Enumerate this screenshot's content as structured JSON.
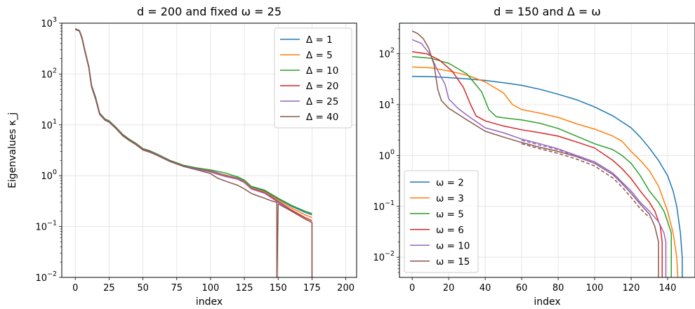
{
  "chart_data": [
    {
      "type": "line",
      "title": "d = 200 and fixed ω = 25",
      "xlabel": "index",
      "ylabel": "Eigenvalues κ_j",
      "yscale": "log",
      "xlim": [
        -10,
        208
      ],
      "ylim": [
        0.01,
        1000
      ],
      "grid": true,
      "legend_position": "top-right",
      "xticks": [
        0,
        25,
        50,
        75,
        100,
        125,
        150,
        175,
        200
      ],
      "xtick_labels": [
        "0",
        "25",
        "50",
        "75",
        "100",
        "125",
        "150",
        "175",
        "200"
      ],
      "yticks": [
        0.01,
        0.1,
        1,
        10,
        100,
        1000
      ],
      "ytick_labels": [
        {
          "base": "10",
          "exp": "−2"
        },
        {
          "base": "10",
          "exp": "−1"
        },
        {
          "base": "10",
          "exp": "0"
        },
        {
          "base": "10",
          "exp": "1"
        },
        {
          "base": "10",
          "exp": "2"
        },
        {
          "base": "10",
          "exp": "3"
        }
      ],
      "series": [
        {
          "name": "Δ = 1",
          "color": "#1f77b4",
          "dashed": false,
          "x": [
            0,
            3,
            5,
            7,
            10,
            12,
            15,
            18,
            22,
            25,
            30,
            35,
            40,
            45,
            50,
            55,
            60,
            70,
            80,
            90,
            100,
            110,
            120,
            125,
            130,
            140,
            150,
            160,
            170,
            175
          ],
          "y": [
            780,
            720,
            520,
            300,
            140,
            60,
            35,
            17,
            13,
            12,
            9,
            6.5,
            5.2,
            4.3,
            3.4,
            3.1,
            2.7,
            2.0,
            1.6,
            1.4,
            1.25,
            1.05,
            0.9,
            0.78,
            0.6,
            0.5,
            0.35,
            0.25,
            0.19,
            0.17
          ]
        },
        {
          "name": "Δ = 5",
          "color": "#ff7f0e",
          "dashed": false,
          "x": [
            0,
            3,
            5,
            7,
            10,
            12,
            15,
            18,
            22,
            25,
            30,
            35,
            40,
            45,
            50,
            55,
            60,
            70,
            80,
            90,
            100,
            110,
            120,
            125,
            130,
            140,
            150,
            160,
            170,
            175
          ],
          "y": [
            770,
            715,
            510,
            295,
            138,
            59,
            34,
            16.8,
            12.8,
            11.8,
            8.8,
            6.4,
            5.1,
            4.2,
            3.35,
            3.05,
            2.65,
            1.98,
            1.58,
            1.38,
            1.22,
            1.03,
            0.88,
            0.76,
            0.58,
            0.48,
            0.33,
            0.23,
            0.17,
            0.15
          ]
        },
        {
          "name": "Δ = 10",
          "color": "#2ca02c",
          "dashed": false,
          "x": [
            0,
            3,
            5,
            7,
            10,
            12,
            15,
            18,
            22,
            25,
            30,
            35,
            40,
            45,
            50,
            55,
            60,
            70,
            80,
            90,
            100,
            110,
            120,
            125,
            130,
            140,
            150,
            160,
            170,
            175
          ],
          "y": [
            775,
            718,
            515,
            298,
            139,
            60,
            35,
            17,
            13,
            12,
            9,
            6.5,
            5.2,
            4.3,
            3.4,
            3.1,
            2.7,
            2.0,
            1.6,
            1.42,
            1.3,
            1.15,
            0.95,
            0.82,
            0.62,
            0.52,
            0.36,
            0.26,
            0.2,
            0.18
          ]
        },
        {
          "name": "Δ = 20",
          "color": "#d62728",
          "dashed": false,
          "x": [
            0,
            3,
            5,
            7,
            10,
            12,
            15,
            18,
            22,
            25,
            30,
            35,
            40,
            45,
            50,
            55,
            60,
            70,
            80,
            90,
            100,
            110,
            120,
            125,
            130,
            140,
            150,
            160,
            170,
            175
          ],
          "y": [
            765,
            710,
            505,
            290,
            136,
            58,
            33,
            16.5,
            12.6,
            11.6,
            8.7,
            6.3,
            5.0,
            4.15,
            3.3,
            3.0,
            2.6,
            1.95,
            1.56,
            1.36,
            1.2,
            1.0,
            0.86,
            0.74,
            0.56,
            0.46,
            0.31,
            0.21,
            0.15,
            0.13
          ]
        },
        {
          "name": "Δ = 25",
          "color": "#9467bd",
          "dashed": false,
          "x": [
            0,
            3,
            5,
            7,
            10,
            12,
            15,
            18,
            22,
            25,
            30,
            35,
            40,
            45,
            50,
            55,
            60,
            70,
            80,
            90,
            100,
            110,
            120,
            125,
            130,
            140,
            150,
            160,
            170,
            175,
            175.01
          ],
          "y": [
            760,
            705,
            500,
            288,
            135,
            57,
            33,
            16.4,
            12.5,
            11.5,
            8.6,
            6.2,
            4.95,
            4.1,
            3.25,
            2.95,
            2.6,
            1.93,
            1.55,
            1.35,
            1.18,
            0.98,
            0.85,
            0.73,
            0.55,
            0.45,
            0.3,
            0.2,
            0.14,
            0.12,
            0.0001
          ]
        },
        {
          "name": "Δ = 40",
          "color": "#8c564b",
          "dashed": false,
          "x": [
            0,
            3,
            5,
            7,
            10,
            12,
            15,
            18,
            22,
            25,
            30,
            35,
            40,
            45,
            50,
            55,
            60,
            70,
            80,
            90,
            100,
            105,
            110,
            115,
            120,
            125,
            130,
            135,
            140,
            145,
            149,
            149.01,
            150,
            160,
            170,
            175,
            175.01
          ],
          "y": [
            750,
            700,
            495,
            285,
            133,
            56,
            32,
            16,
            12.3,
            11.3,
            8.5,
            6.1,
            4.9,
            4.05,
            3.2,
            2.9,
            2.55,
            1.9,
            1.52,
            1.3,
            1.1,
            0.9,
            0.8,
            0.72,
            0.65,
            0.55,
            0.45,
            0.4,
            0.36,
            0.32,
            0.3,
            0.0001,
            0.28,
            0.2,
            0.14,
            0.12,
            0.0001
          ]
        }
      ]
    },
    {
      "type": "line",
      "title": "d = 150 and Δ = ω",
      "xlabel": "index",
      "ylabel": "",
      "yscale": "log",
      "xlim": [
        -7,
        155
      ],
      "ylim": [
        0.004,
        400
      ],
      "grid": true,
      "legend_position": "bottom-left",
      "xticks": [
        0,
        20,
        40,
        60,
        80,
        100,
        120,
        140
      ],
      "xtick_labels": [
        "0",
        "20",
        "40",
        "60",
        "80",
        "100",
        "120",
        "140"
      ],
      "yticks": [
        0.01,
        0.1,
        1,
        10,
        100
      ],
      "ytick_labels": [
        {
          "base": "10",
          "exp": "−2"
        },
        {
          "base": "10",
          "exp": "−1"
        },
        {
          "base": "10",
          "exp": "0"
        },
        {
          "base": "10",
          "exp": "1"
        },
        {
          "base": "10",
          "exp": "2"
        }
      ],
      "series": [
        {
          "name": "ω = 2",
          "color": "#1f77b4",
          "dashed": false,
          "x": [
            0,
            10,
            20,
            30,
            40,
            50,
            60,
            70,
            80,
            90,
            100,
            110,
            120,
            125,
            130,
            135,
            140,
            143,
            145,
            147,
            148,
            148.01
          ],
          "y": [
            36,
            35.5,
            34,
            32,
            30,
            27,
            24,
            20,
            16,
            12.5,
            9,
            6,
            3.5,
            2.3,
            1.4,
            0.8,
            0.4,
            0.2,
            0.1,
            0.03,
            0.01,
            0.0001
          ]
        },
        {
          "name": "ω = 3",
          "color": "#ff7f0e",
          "dashed": false,
          "x": [
            0,
            10,
            20,
            30,
            40,
            50,
            55,
            60,
            70,
            80,
            90,
            100,
            110,
            115,
            120,
            125,
            130,
            135,
            140,
            143,
            145,
            146.01
          ],
          "y": [
            55,
            53,
            46,
            38,
            28,
            17,
            10,
            8,
            6.8,
            5.6,
            4.2,
            3.3,
            2.4,
            1.9,
            1.2,
            0.8,
            0.5,
            0.25,
            0.08,
            0.03,
            0.01,
            0.0001
          ]
        },
        {
          "name": "ω = 5",
          "color": "#2ca02c",
          "dashed": false,
          "x": [
            0,
            10,
            20,
            30,
            38,
            42,
            46,
            50,
            60,
            70,
            80,
            90,
            100,
            110,
            115,
            120,
            125,
            130,
            135,
            138,
            140,
            142,
            142.01
          ],
          "y": [
            88,
            82,
            65,
            40,
            18,
            8,
            5.8,
            5.5,
            5.0,
            4.3,
            3.4,
            2.4,
            1.7,
            1.3,
            1.0,
            0.7,
            0.4,
            0.2,
            0.12,
            0.08,
            0.05,
            0.03,
            0.0001
          ]
        },
        {
          "name": "ω = 6",
          "color": "#d62728",
          "dashed": false,
          "x": [
            0,
            8,
            15,
            22,
            28,
            32,
            35,
            40,
            50,
            60,
            70,
            80,
            90,
            100,
            110,
            115,
            120,
            125,
            130,
            133,
            136,
            137,
            137.01
          ],
          "y": [
            110,
            100,
            75,
            45,
            22,
            10,
            6,
            4.8,
            3.8,
            3.2,
            2.8,
            2.4,
            1.85,
            1.4,
            0.8,
            0.55,
            0.35,
            0.2,
            0.12,
            0.08,
            0.04,
            0.02,
            0.0001
          ]
        },
        {
          "name": "ω = 10",
          "color": "#9467bd",
          "dashed": false,
          "x": [
            0,
            5,
            10,
            13,
            15,
            18,
            20,
            25,
            30,
            40,
            50,
            60,
            70,
            80,
            90,
            100,
            110,
            115,
            120,
            125,
            130,
            135,
            138,
            139,
            139.01
          ],
          "y": [
            190,
            160,
            95,
            55,
            40,
            25,
            13,
            8.5,
            6.2,
            3.5,
            2.8,
            2.1,
            1.7,
            1.35,
            1.0,
            0.75,
            0.45,
            0.3,
            0.2,
            0.12,
            0.08,
            0.05,
            0.03,
            0.02,
            0.0001
          ]
        },
        {
          "name": "ω = 15",
          "color": "#8c564b",
          "dashed": false,
          "x": [
            0,
            3,
            6,
            9,
            12,
            14,
            16,
            20,
            30,
            40,
            50,
            60,
            70,
            80,
            90,
            100,
            110,
            115,
            120,
            125,
            130,
            133,
            135,
            135.01
          ],
          "y": [
            280,
            250,
            200,
            130,
            60,
            20,
            12,
            8.5,
            5,
            3.0,
            2.3,
            1.8,
            1.45,
            1.2,
            0.95,
            0.7,
            0.42,
            0.28,
            0.18,
            0.11,
            0.07,
            0.04,
            0.02,
            0.0001
          ]
        },
        {
          "name": "",
          "color": "#9467bd",
          "dashed": true,
          "x": [
            60,
            70,
            80,
            90,
            100,
            110,
            115,
            120,
            125,
            130
          ],
          "y": [
            2.0,
            1.6,
            1.3,
            0.95,
            0.7,
            0.42,
            0.28,
            0.18,
            0.11,
            0.07
          ]
        },
        {
          "name": "",
          "color": "#8c564b",
          "dashed": true,
          "x": [
            60,
            70,
            80,
            90,
            100,
            110,
            115,
            120,
            125,
            130
          ],
          "y": [
            1.7,
            1.35,
            1.1,
            0.85,
            0.62,
            0.36,
            0.24,
            0.15,
            0.09,
            0.06
          ]
        }
      ]
    }
  ]
}
